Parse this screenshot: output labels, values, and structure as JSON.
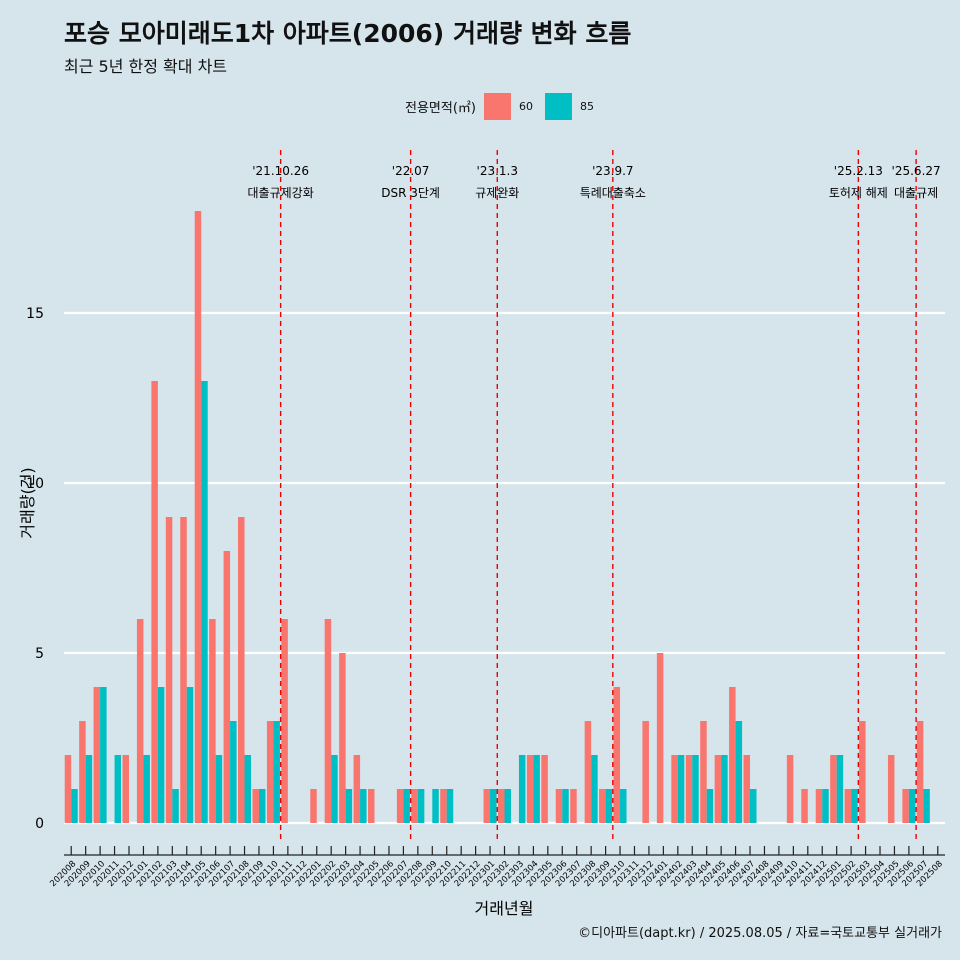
{
  "title": "포승 모아미래도1차 아파트(2006) 거래량 변화 흐름",
  "subtitle": "최근 5년 한정 확대 차트",
  "caption": "©디아파트(dapt.kr) / 2025.08.05 / 자료=국토교통부 실거래가",
  "colors": {
    "s60": "#f8766d",
    "s85": "#00bfc4",
    "background": "#d6e4ec",
    "event_line": "#ee0000"
  },
  "legend": {
    "title": "전용면적(㎡)",
    "items": [
      "60",
      "85"
    ]
  },
  "chart_data": {
    "type": "bar",
    "xlabel": "거래년월",
    "ylabel": "거래량(건)",
    "ylim": [
      0,
      19
    ],
    "yticks": [
      0,
      5,
      10,
      15
    ],
    "grid": true,
    "legend_position": "top",
    "categories": [
      "202008",
      "202009",
      "202010",
      "202011",
      "202012",
      "202101",
      "202102",
      "202103",
      "202104",
      "202105",
      "202106",
      "202107",
      "202108",
      "202109",
      "202110",
      "202111",
      "202112",
      "202201",
      "202202",
      "202203",
      "202204",
      "202205",
      "202206",
      "202207",
      "202208",
      "202209",
      "202210",
      "202211",
      "202212",
      "202301",
      "202302",
      "202303",
      "202304",
      "202305",
      "202306",
      "202307",
      "202308",
      "202309",
      "202310",
      "202311",
      "202312",
      "202401",
      "202402",
      "202403",
      "202404",
      "202405",
      "202406",
      "202407",
      "202408",
      "202409",
      "202410",
      "202411",
      "202412",
      "202501",
      "202502",
      "202503",
      "202504",
      "202505",
      "202506",
      "202507",
      "202508"
    ],
    "series": [
      {
        "name": "60",
        "values": [
          2,
          3,
          4,
          0,
          2,
          6,
          13,
          9,
          9,
          18,
          6,
          8,
          9,
          1,
          3,
          6,
          0,
          1,
          6,
          5,
          2,
          1,
          0,
          1,
          1,
          0,
          1,
          0,
          0,
          1,
          1,
          0,
          2,
          2,
          1,
          1,
          3,
          1,
          4,
          0,
          3,
          5,
          2,
          2,
          3,
          2,
          4,
          2,
          0,
          0,
          2,
          1,
          1,
          2,
          1,
          3,
          0,
          2,
          1,
          3,
          0
        ]
      },
      {
        "name": "85",
        "values": [
          1,
          2,
          4,
          2,
          0,
          2,
          4,
          1,
          4,
          13,
          2,
          3,
          2,
          1,
          3,
          0,
          0,
          0,
          2,
          1,
          1,
          0,
          0,
          1,
          1,
          1,
          1,
          0,
          0,
          1,
          1,
          2,
          2,
          0,
          1,
          0,
          2,
          1,
          1,
          0,
          0,
          0,
          2,
          2,
          1,
          2,
          3,
          1,
          0,
          0,
          0,
          0,
          1,
          2,
          1,
          0,
          0,
          0,
          1,
          1,
          0
        ]
      }
    ],
    "events": [
      {
        "date": "'21.10.26",
        "label": "대출규제강화",
        "after": "202110"
      },
      {
        "date": "'22.07",
        "label": "DSR 3단계",
        "after": "202207"
      },
      {
        "date": "'23.1.3",
        "label": "규제완화",
        "after": "202301"
      },
      {
        "date": "'23.9.7",
        "label": "특례대출축소",
        "after": "202309"
      },
      {
        "date": "'25.2.13",
        "label": "토허제 해제",
        "after": "202502"
      },
      {
        "date": "'25.6.27",
        "label": "대출규제",
        "after": "202506"
      }
    ]
  }
}
